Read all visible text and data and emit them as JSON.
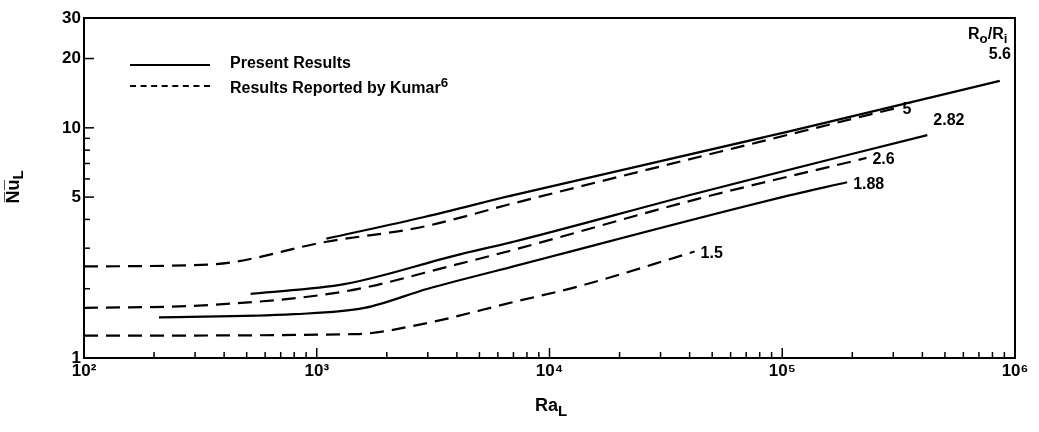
{
  "chart_data": {
    "type": "line",
    "xlabel": "Ra$_{L}$",
    "ylabel": "N̅u̅$_{L}$",
    "log": "xy",
    "grid": false,
    "marker": "none",
    "xlim": [
      100,
      1000000
    ],
    "ylim": [
      1,
      30
    ],
    "xticks": [
      {
        "value": 100,
        "label": "10²"
      },
      {
        "value": 200,
        "label": null
      },
      {
        "value": 300,
        "label": null
      },
      {
        "value": 400,
        "label": null
      },
      {
        "value": 500,
        "label": null
      },
      {
        "value": 600,
        "label": null
      },
      {
        "value": 700,
        "label": null
      },
      {
        "value": 800,
        "label": null
      },
      {
        "value": 900,
        "label": null
      },
      {
        "value": 1000,
        "label": "10³"
      },
      {
        "value": 2000,
        "label": null
      },
      {
        "value": 3000,
        "label": null
      },
      {
        "value": 4000,
        "label": null
      },
      {
        "value": 5000,
        "label": null
      },
      {
        "value": 6000,
        "label": null
      },
      {
        "value": 7000,
        "label": null
      },
      {
        "value": 8000,
        "label": null
      },
      {
        "value": 9000,
        "label": null
      },
      {
        "value": 10000,
        "label": "10⁴"
      },
      {
        "value": 20000,
        "label": null
      },
      {
        "value": 30000,
        "label": null
      },
      {
        "value": 40000,
        "label": null
      },
      {
        "value": 50000,
        "label": null
      },
      {
        "value": 60000,
        "label": null
      },
      {
        "value": 70000,
        "label": null
      },
      {
        "value": 80000,
        "label": null
      },
      {
        "value": 90000,
        "label": null
      },
      {
        "value": 100000,
        "label": "10⁵"
      },
      {
        "value": 200000,
        "label": null
      },
      {
        "value": 300000,
        "label": null
      },
      {
        "value": 400000,
        "label": null
      },
      {
        "value": 500000,
        "label": null
      },
      {
        "value": 600000,
        "label": null
      },
      {
        "value": 700000,
        "label": null
      },
      {
        "value": 800000,
        "label": null
      },
      {
        "value": 900000,
        "label": null
      },
      {
        "value": 1000000,
        "label": "10⁶"
      }
    ],
    "yticks": [
      1,
      {
        "value": 2,
        "label": null
      },
      {
        "value": 3,
        "label": null
      },
      {
        "value": 4,
        "label": null
      },
      5,
      {
        "value": 6,
        "label": null
      },
      {
        "value": 7,
        "label": null
      },
      {
        "value": 8,
        "label": null
      },
      {
        "value": 9,
        "label": null
      },
      10,
      20,
      30
    ],
    "series": [
      {
        "name": "5.6",
        "color": "#000000",
        "line_style": "solid",
        "x": [
          1100,
          2900,
          7000,
          105000,
          860000
        ],
        "values": [
          3.3,
          4.1,
          5.1,
          9.6,
          16
        ]
      },
      {
        "name": "5",
        "color": "#000000",
        "line_style": "dashed",
        "x": [
          100,
          350,
          1100,
          2800,
          7000,
          96000,
          310000
        ],
        "values": [
          2.5,
          2.55,
          3.2,
          3.7,
          4.7,
          9.1,
          12.2
        ]
      },
      {
        "name": "2.82",
        "color": "#000000",
        "line_style": "solid",
        "x": [
          520,
          1330,
          4000,
          7000,
          43000,
          420000
        ],
        "values": [
          1.9,
          2.1,
          2.8,
          3.2,
          5.2,
          9.3
        ]
      },
      {
        "name": "2.6",
        "color": "#000000",
        "line_style": "dashed",
        "x": [
          100,
          350,
          1330,
          4000,
          7000,
          43000,
          230000
        ],
        "values": [
          1.65,
          1.7,
          1.95,
          2.55,
          2.95,
          4.9,
          7.4
        ]
      },
      {
        "name": "1.88",
        "color": "#000000",
        "line_style": "solid",
        "x": [
          210,
          800,
          1600,
          3000,
          7000,
          100000,
          190000
        ],
        "values": [
          1.5,
          1.55,
          1.65,
          2.0,
          2.5,
          5.0,
          5.8
        ]
      },
      {
        "name": "1.5",
        "color": "#000000",
        "line_style": "dashed",
        "x": [
          100,
          1470,
          2800,
          7000,
          13400,
          42000
        ],
        "values": [
          1.25,
          1.27,
          1.4,
          1.75,
          2.05,
          2.9
        ]
      }
    ],
    "annotations": [
      "Present Results",
      "Results Reported by Kumar$^{6}$",
      "R$_{o}$/R$_{i}$"
    ]
  }
}
